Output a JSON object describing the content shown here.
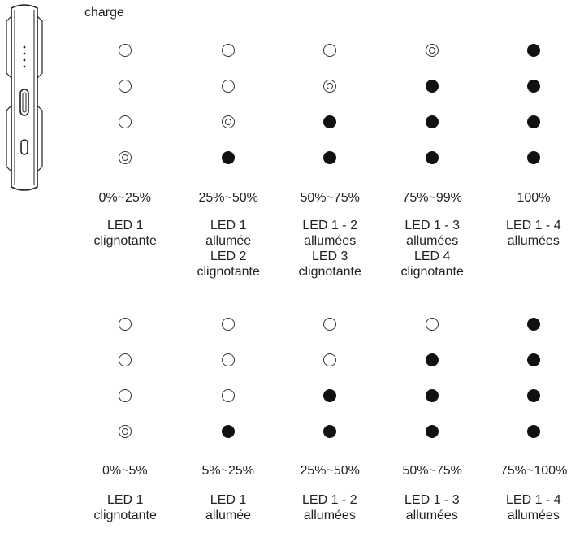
{
  "heading": "charge",
  "sections": [
    {
      "columns": [
        {
          "leds": [
            "off",
            "off",
            "off",
            "blink"
          ],
          "range": "0%~25%",
          "lines": [
            "LED 1",
            "clignotante"
          ]
        },
        {
          "leds": [
            "off",
            "off",
            "blink",
            "on"
          ],
          "range": "25%~50%",
          "lines": [
            "LED 1",
            "allumée",
            "LED 2",
            "clignotante"
          ]
        },
        {
          "leds": [
            "off",
            "blink",
            "on",
            "on"
          ],
          "range": "50%~75%",
          "lines": [
            "LED 1 - 2",
            "allumées",
            "LED 3",
            "clignotante"
          ]
        },
        {
          "leds": [
            "blink",
            "on",
            "on",
            "on"
          ],
          "range": "75%~99%",
          "lines": [
            "LED 1 - 3",
            "allumées",
            "LED 4",
            "clignotante"
          ]
        },
        {
          "leds": [
            "on",
            "on",
            "on",
            "on"
          ],
          "range": "100%",
          "lines": [
            "LED 1 - 4",
            "allumées"
          ]
        }
      ]
    },
    {
      "columns": [
        {
          "leds": [
            "off",
            "off",
            "off",
            "blink"
          ],
          "range": "0%~5%",
          "lines": [
            "LED 1",
            "clignotante"
          ]
        },
        {
          "leds": [
            "off",
            "off",
            "off",
            "on"
          ],
          "range": "5%~25%",
          "lines": [
            "LED 1",
            "allumée"
          ]
        },
        {
          "leds": [
            "off",
            "off",
            "on",
            "on"
          ],
          "range": "25%~50%",
          "lines": [
            "LED 1 - 2",
            "allumées"
          ]
        },
        {
          "leds": [
            "off",
            "on",
            "on",
            "on"
          ],
          "range": "50%~75%",
          "lines": [
            "LED 1 - 3",
            "allumées"
          ]
        },
        {
          "leds": [
            "on",
            "on",
            "on",
            "on"
          ],
          "range": "75%~100%",
          "lines": [
            "LED 1 - 4",
            "allumées"
          ]
        }
      ]
    }
  ]
}
